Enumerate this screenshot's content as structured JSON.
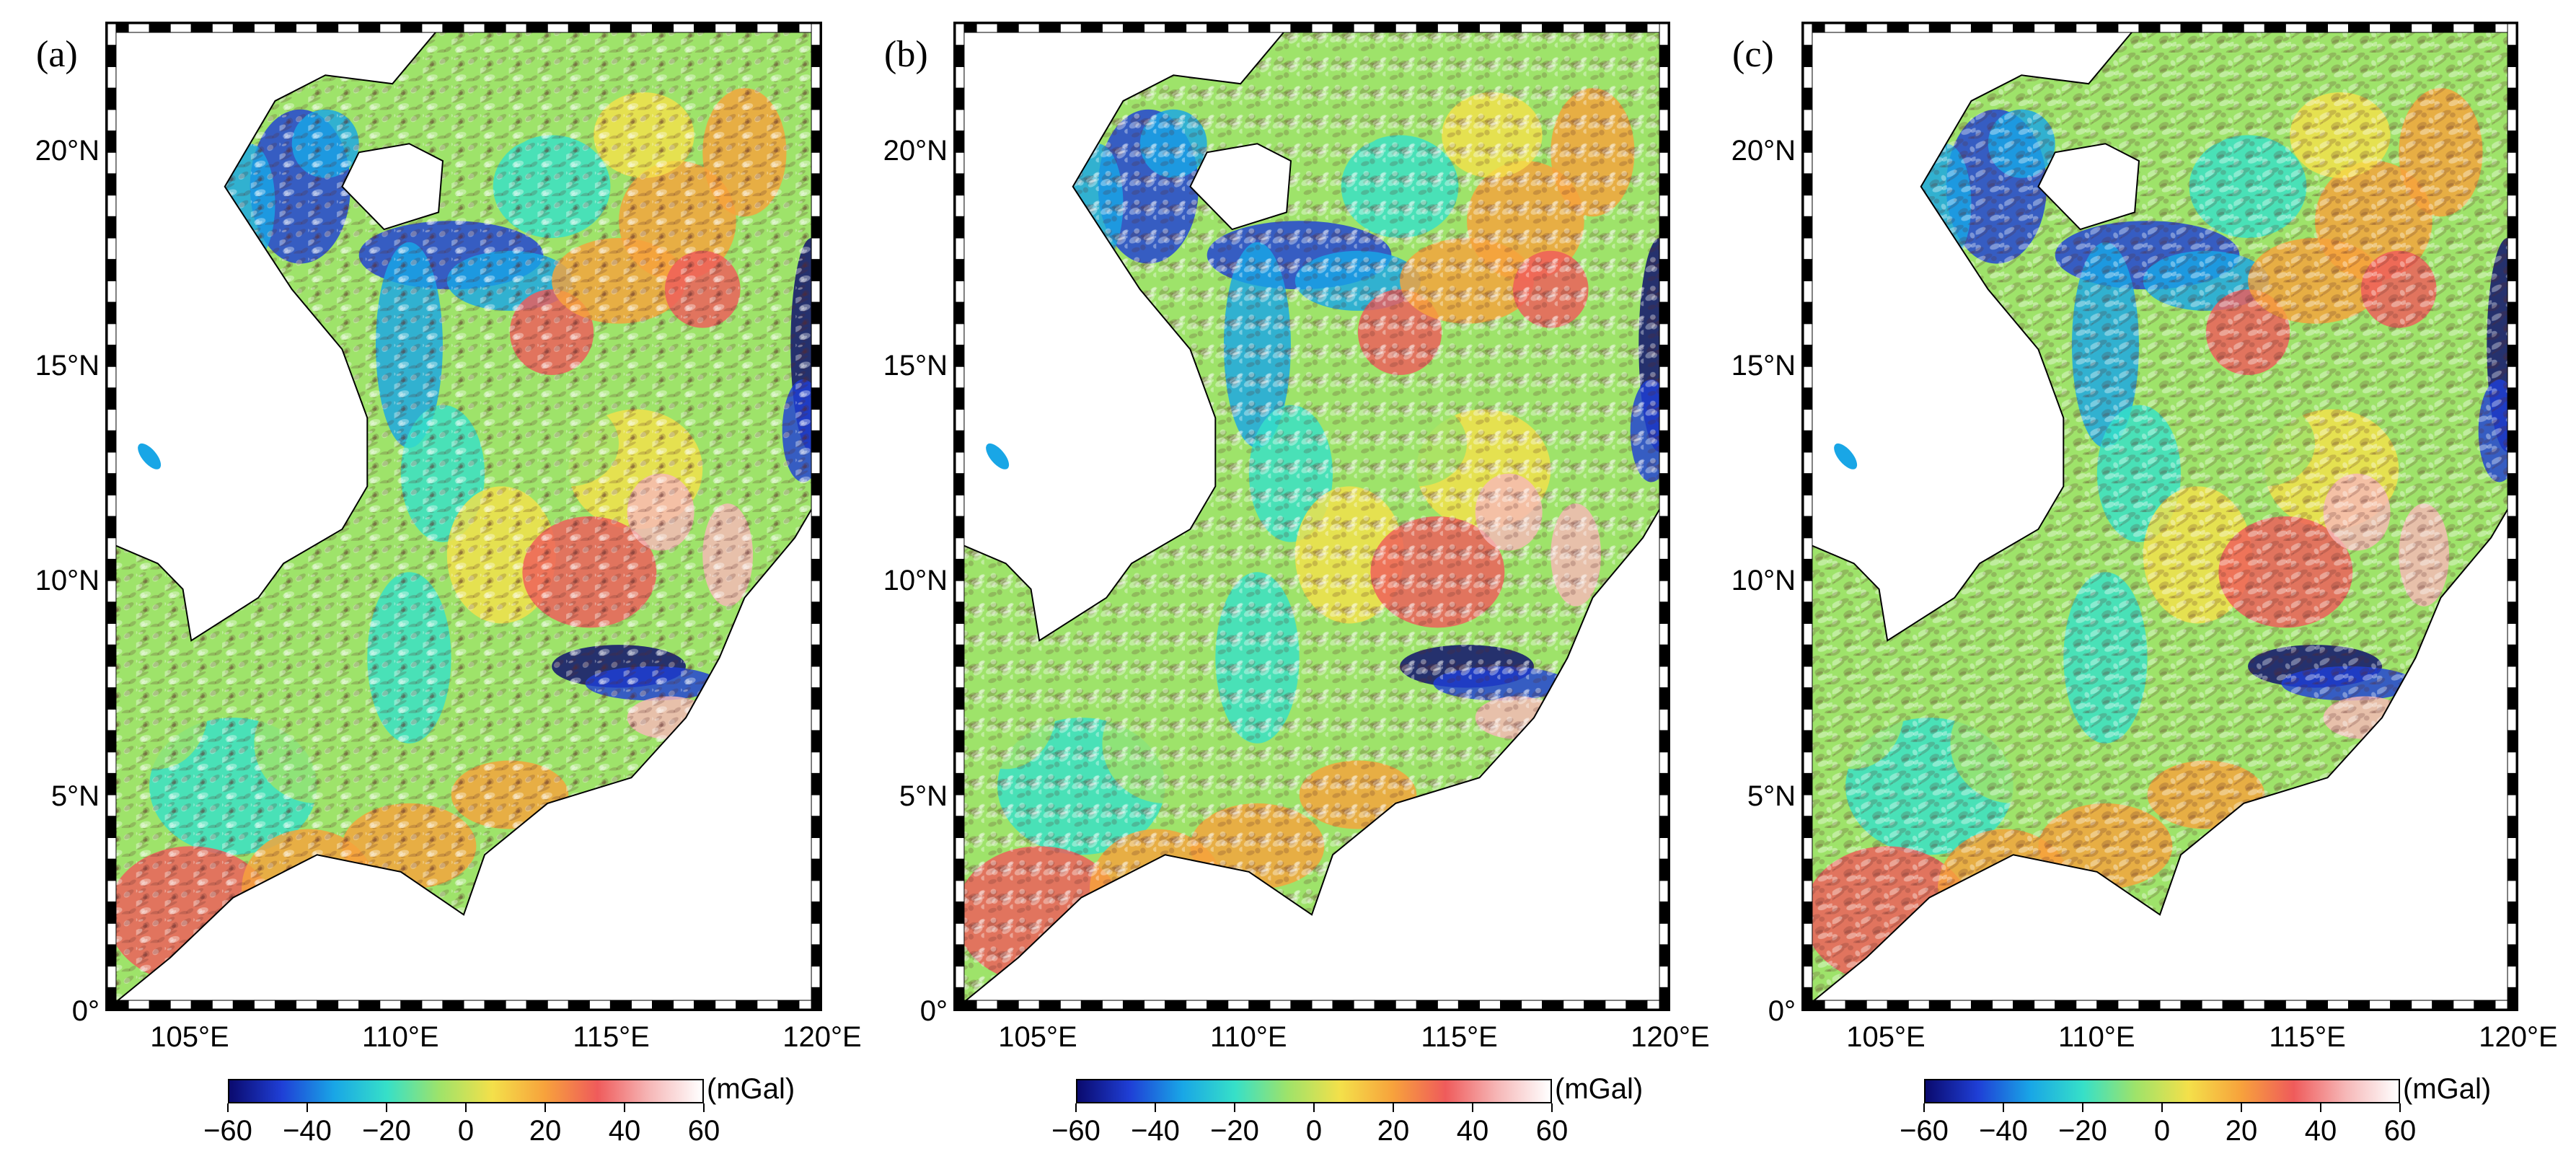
{
  "panels": [
    {
      "label": "(a)"
    },
    {
      "label": "(b)"
    },
    {
      "label": "(c)"
    }
  ],
  "axes": {
    "lat_ticks": [
      "0°",
      "5°N",
      "10°N",
      "15°N",
      "20°N"
    ],
    "lat_values": [
      0,
      5,
      10,
      15,
      20
    ],
    "lon_ticks": [
      "105°E",
      "110°E",
      "115°E",
      "120°E"
    ],
    "lon_values": [
      105,
      110,
      115,
      120
    ],
    "lon_range": [
      103,
      120
    ],
    "lat_range": [
      0,
      23
    ]
  },
  "colorbar": {
    "unit": "(mGal)",
    "ticks": [
      "−60",
      "−40",
      "−20",
      "0",
      "20",
      "40",
      "60"
    ],
    "tick_values": [
      -60,
      -40,
      -20,
      0,
      20,
      40,
      60
    ],
    "range": [
      -60,
      60
    ],
    "colors": [
      "#0a0a6e",
      "#1f3fd6",
      "#19a6e6",
      "#36e0c8",
      "#9ee36a",
      "#f4e04a",
      "#f7a23c",
      "#ef5b5b",
      "#f6b8b8",
      "#ffffff"
    ]
  }
}
